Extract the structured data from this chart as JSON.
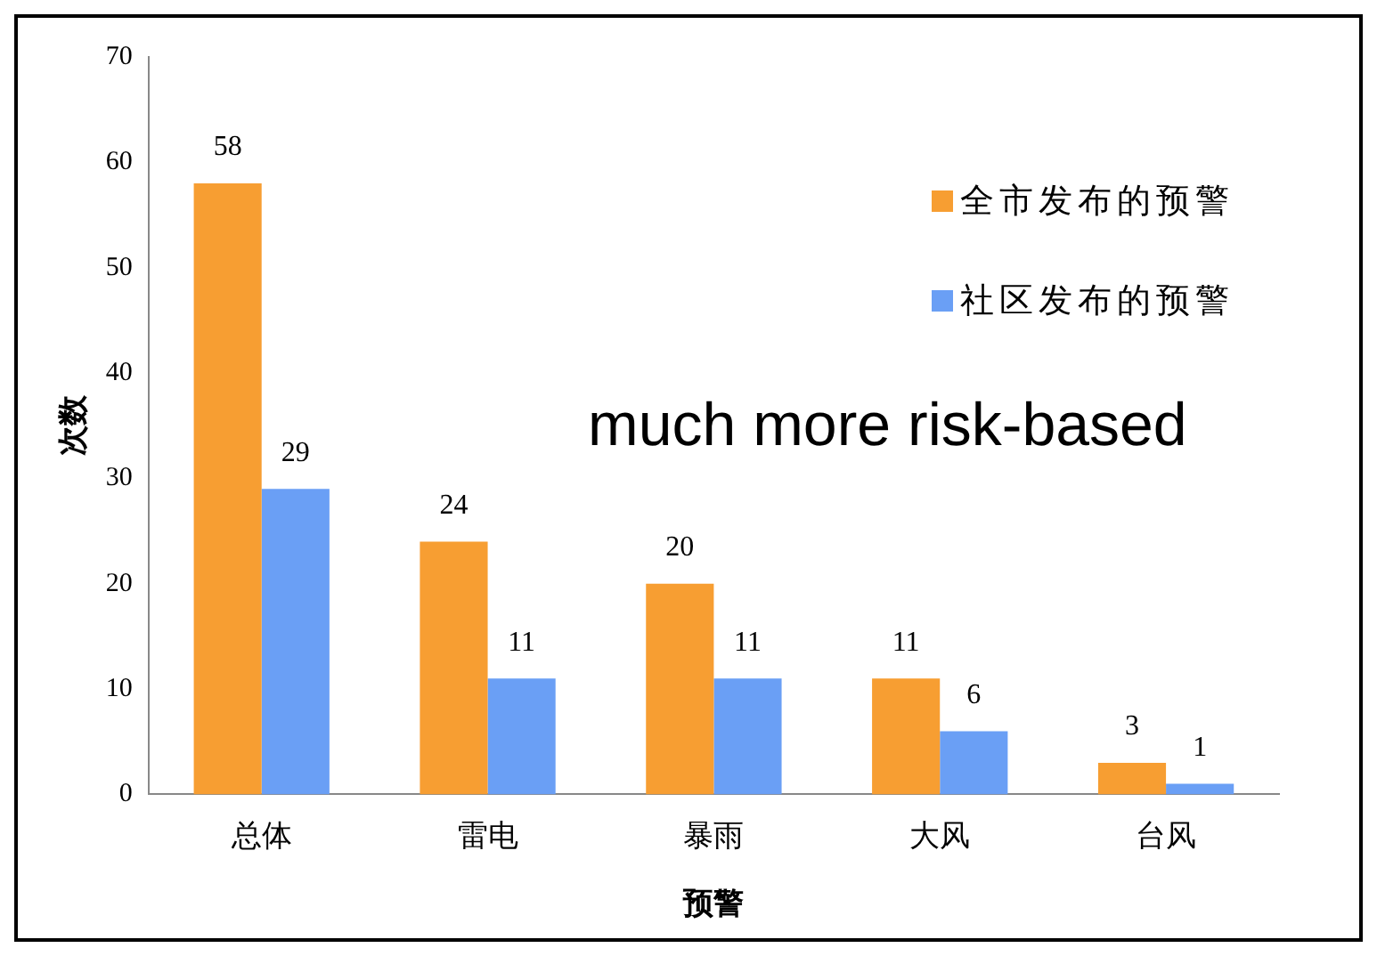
{
  "chart_data": {
    "type": "bar",
    "xlabel": "预警",
    "ylabel": "次数",
    "categories": [
      "总体",
      "雷电",
      "暴雨",
      "大风",
      "台风"
    ],
    "series": [
      {
        "name": "全市发布的预警",
        "color": "#f79e32",
        "values": [
          58,
          24,
          20,
          11,
          3
        ]
      },
      {
        "name": "社区发布的预警",
        "color": "#6a9ff5",
        "values": [
          29,
          11,
          11,
          6,
          1
        ]
      }
    ],
    "ylim": [
      0,
      70
    ],
    "yticks": [
      0,
      10,
      20,
      30,
      40,
      50,
      60,
      70
    ],
    "grid": false,
    "legend": "top right",
    "data_labels": true,
    "annotations": [
      "much more risk-based"
    ]
  }
}
